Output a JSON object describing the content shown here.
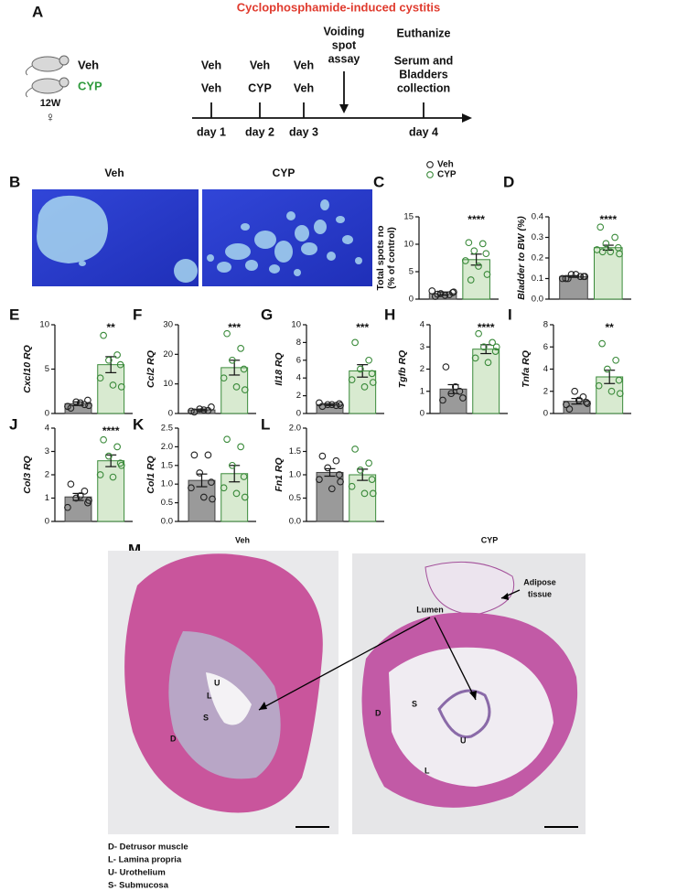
{
  "panel_a": {
    "letter": "A",
    "title": "Cyclophosphamide-induced cystitis",
    "groups": [
      "Veh",
      "CYP"
    ],
    "age": "12W",
    "sex": "♀",
    "timepoints": [
      {
        "top": "Veh",
        "bottom": "Veh",
        "day": "day 1"
      },
      {
        "top": "Veh",
        "bottom": "CYP",
        "day": "day 2"
      },
      {
        "top": "Veh",
        "bottom": "Veh",
        "day": "day 3"
      }
    ],
    "assay": [
      "Voiding",
      "spot",
      "assay"
    ],
    "end": {
      "title": "Euthanize",
      "lines": [
        "Serum and",
        "Bladders",
        "collection"
      ],
      "day": "day 4"
    }
  },
  "panel_b": {
    "letter": "B",
    "labels": [
      "Veh",
      "CYP"
    ]
  },
  "panel_m": {
    "letter": "M",
    "labels": [
      "Veh",
      "CYP"
    ],
    "annotations": [
      "Lumen",
      [
        "Adipose",
        "tissue"
      ]
    ],
    "legend": [
      {
        "code": "D",
        "text": "D- Detrusor muscle"
      },
      {
        "code": "L",
        "text": "L- Lamina propria"
      },
      {
        "code": "U",
        "text": "U- Urothelium"
      },
      {
        "code": "S",
        "text": "S- Submucosa"
      }
    ]
  },
  "chart_data": [
    {
      "type": "bar",
      "label": "C",
      "ylabel": [
        "Total spots no",
        "(% of control)"
      ],
      "legend": [
        "Veh",
        "CYP"
      ],
      "colors": [
        "#9a9a9a",
        "#d8ead0"
      ],
      "point_colors": [
        "#222222",
        "#3a8a3a"
      ],
      "values": [
        1.0,
        7.2
      ],
      "errors": [
        0.3,
        1.0
      ],
      "points": [
        [
          0.5,
          0.8,
          1.0,
          1.2,
          1.5,
          0.7,
          1.3,
          0.9
        ],
        [
          10.3,
          10.1,
          8.8,
          8.3,
          7.0,
          6.0,
          4.5,
          3.5
        ]
      ],
      "significance": "****",
      "ylim": [
        0,
        15
      ],
      "yticks": [
        0,
        5,
        10,
        15
      ]
    },
    {
      "type": "bar",
      "label": "D",
      "ylabel": "Bladder to BW (%)",
      "colors": [
        "#9a9a9a",
        "#d8ead0"
      ],
      "point_colors": [
        "#222222",
        "#3a8a3a"
      ],
      "values": [
        0.11,
        0.25
      ],
      "errors": [
        0.004,
        0.012
      ],
      "points": [
        [
          0.1,
          0.11,
          0.12,
          0.11,
          0.1,
          0.12,
          0.11,
          0.1
        ],
        [
          0.35,
          0.3,
          0.27,
          0.25,
          0.24,
          0.23,
          0.22,
          0.23
        ]
      ],
      "significance": "****",
      "ylim": [
        0,
        0.4
      ],
      "yticks": [
        {
          "value": 0,
          "label": "0.0"
        },
        0.1,
        0.2,
        0.3,
        0.4
      ]
    },
    {
      "type": "bar",
      "label": "E",
      "ylabel": "Cxcl10 RQ",
      "colors": [
        "#9a9a9a",
        "#d8ead0"
      ],
      "point_colors": [
        "#222222",
        "#3a8a3a"
      ],
      "values": [
        1.1,
        5.5
      ],
      "errors": [
        0.2,
        0.9
      ],
      "points": [
        [
          0.6,
          1.0,
          1.3,
          1.5,
          0.8,
          1.2,
          0.9
        ],
        [
          8.8,
          6.6,
          6.0,
          5.5,
          4.0,
          3.2,
          3.0
        ]
      ],
      "significance": "**",
      "ylim": [
        0,
        10
      ],
      "yticks": [
        0,
        5,
        10
      ]
    },
    {
      "type": "bar",
      "label": "F",
      "ylabel": "Ccl2 RQ",
      "colors": [
        "#9a9a9a",
        "#d8ead0"
      ],
      "point_colors": [
        "#222222",
        "#3a8a3a"
      ],
      "values": [
        1.2,
        15.5
      ],
      "errors": [
        0.3,
        2.5
      ],
      "points": [
        [
          0.5,
          1.0,
          1.5,
          2.2,
          0.8,
          1.2
        ],
        [
          27,
          22,
          18,
          15,
          12,
          9,
          8
        ]
      ],
      "significance": "***",
      "ylim": [
        0,
        30
      ],
      "yticks": [
        0,
        10,
        20,
        30
      ]
    },
    {
      "type": "bar",
      "label": "G",
      "ylabel": "Il18 RQ",
      "colors": [
        "#9a9a9a",
        "#d8ead0"
      ],
      "point_colors": [
        "#222222",
        "#3a8a3a"
      ],
      "values": [
        1.0,
        4.8
      ],
      "errors": [
        0.1,
        0.7
      ],
      "points": [
        [
          0.8,
          0.9,
          1.0,
          1.1,
          1.2,
          1.0,
          0.9
        ],
        [
          8.0,
          6.0,
          5.0,
          4.5,
          3.8,
          3.0,
          3.5
        ]
      ],
      "significance": "***",
      "ylim": [
        0,
        10
      ],
      "yticks": [
        0,
        2,
        4,
        6,
        8,
        10
      ]
    },
    {
      "type": "bar",
      "label": "H",
      "ylabel": "Tgfb RQ",
      "colors": [
        "#9a9a9a",
        "#d8ead0"
      ],
      "point_colors": [
        "#222222",
        "#3a8a3a"
      ],
      "values": [
        1.1,
        2.9
      ],
      "errors": [
        0.2,
        0.2
      ],
      "points": [
        [
          2.1,
          1.0,
          0.9,
          0.7,
          0.6,
          1.2
        ],
        [
          3.6,
          3.2,
          3.0,
          2.8,
          2.5,
          2.3,
          3.0
        ]
      ],
      "significance": "****",
      "ylim": [
        0,
        4
      ],
      "yticks": [
        0,
        1,
        2,
        3,
        4
      ]
    },
    {
      "type": "bar",
      "label": "I",
      "ylabel": "Tnfa RQ",
      "colors": [
        "#9a9a9a",
        "#d8ead0"
      ],
      "point_colors": [
        "#222222",
        "#3a8a3a"
      ],
      "values": [
        1.1,
        3.3
      ],
      "errors": [
        0.25,
        0.6
      ],
      "points": [
        [
          0.4,
          1.5,
          2.0,
          1.0,
          0.8,
          1.2,
          0.9
        ],
        [
          6.3,
          4.8,
          4.0,
          3.0,
          2.5,
          2.0,
          1.8
        ]
      ],
      "significance": "**",
      "ylim": [
        0,
        8
      ],
      "yticks": [
        0,
        2,
        4,
        6,
        8
      ]
    },
    {
      "type": "bar",
      "label": "J",
      "ylabel": "Col3 RQ",
      "colors": [
        "#9a9a9a",
        "#d8ead0"
      ],
      "point_colors": [
        "#222222",
        "#3a8a3a"
      ],
      "values": [
        1.05,
        2.6
      ],
      "errors": [
        0.15,
        0.25
      ],
      "points": [
        [
          1.6,
          1.3,
          1.0,
          0.8,
          0.6,
          1.1,
          0.9
        ],
        [
          3.5,
          3.2,
          2.8,
          2.5,
          2.0,
          1.9,
          2.4
        ]
      ],
      "significance": "****",
      "ylim": [
        0,
        4
      ],
      "yticks": [
        0,
        1,
        2,
        3,
        4
      ]
    },
    {
      "type": "bar",
      "label": "K",
      "ylabel": "Col1 RQ",
      "colors": [
        "#9a9a9a",
        "#d8ead0"
      ],
      "point_colors": [
        "#222222",
        "#3a8a3a"
      ],
      "values": [
        1.1,
        1.28
      ],
      "errors": [
        0.17,
        0.22
      ],
      "points": [
        [
          1.78,
          1.78,
          1.3,
          1.05,
          0.9,
          0.65,
          0.6
        ],
        [
          2.2,
          2.0,
          1.5,
          1.2,
          0.9,
          0.75,
          0.65
        ]
      ],
      "ylim": [
        0,
        2.5
      ],
      "yticks": [
        {
          "value": 0,
          "label": "0.0"
        },
        0.5,
        {
          "value": 1,
          "label": "1.0"
        },
        1.5,
        {
          "value": 2,
          "label": "2.0"
        },
        2.5
      ]
    },
    {
      "type": "bar",
      "label": "L",
      "ylabel": "Fn1 RQ",
      "colors": [
        "#9a9a9a",
        "#d8ead0"
      ],
      "point_colors": [
        "#222222",
        "#3a8a3a"
      ],
      "values": [
        1.05,
        1.0
      ],
      "errors": [
        0.08,
        0.12
      ],
      "points": [
        [
          1.4,
          1.3,
          1.15,
          1.0,
          0.9,
          0.7,
          0.85
        ],
        [
          1.55,
          1.25,
          1.1,
          0.9,
          0.75,
          0.6,
          0.6
        ]
      ],
      "ylim": [
        0,
        2
      ],
      "yticks": [
        {
          "value": 0,
          "label": "0.0"
        },
        0.5,
        {
          "value": 1,
          "label": "1.0"
        },
        1.5,
        {
          "value": 2,
          "label": "2.0"
        }
      ]
    }
  ]
}
